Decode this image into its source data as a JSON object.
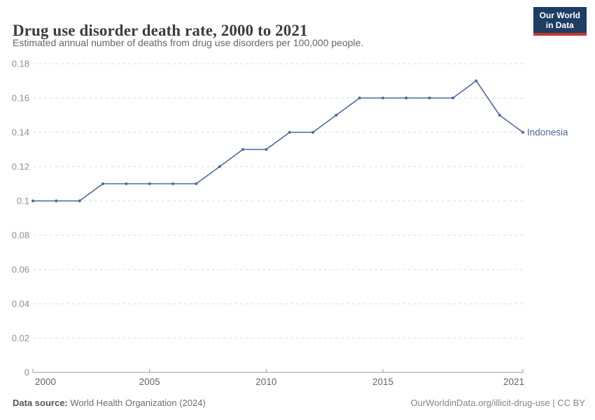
{
  "header": {
    "title": "Drug use disorder death rate, 2000 to 2021",
    "subtitle": "Estimated annual number of deaths from drug use disorders per 100,000 people.",
    "logo_line1": "Our World",
    "logo_line2": "in Data"
  },
  "chart_data": {
    "type": "line",
    "title": "Drug use disorder death rate, 2000 to 2021",
    "xlabel": "",
    "ylabel": "",
    "x": [
      2000,
      2001,
      2002,
      2003,
      2004,
      2005,
      2006,
      2007,
      2008,
      2009,
      2010,
      2011,
      2012,
      2013,
      2014,
      2015,
      2016,
      2017,
      2018,
      2019,
      2020,
      2021
    ],
    "series": [
      {
        "name": "Indonesia",
        "color": "#4c6a9c",
        "values": [
          0.1,
          0.1,
          0.1,
          0.11,
          0.11,
          0.11,
          0.11,
          0.11,
          0.12,
          0.13,
          0.13,
          0.14,
          0.14,
          0.15,
          0.16,
          0.16,
          0.16,
          0.16,
          0.16,
          0.17,
          0.15,
          0.14
        ]
      }
    ],
    "xlim": [
      2000,
      2021
    ],
    "ylim": [
      0,
      0.18
    ],
    "x_ticks": [
      {
        "value": 2000,
        "label": "2000"
      },
      {
        "value": 2005,
        "label": "2005"
      },
      {
        "value": 2010,
        "label": "2010"
      },
      {
        "value": 2015,
        "label": "2015"
      },
      {
        "value": 2021,
        "label": "2021"
      }
    ],
    "y_ticks": [
      {
        "value": 0,
        "label": "0"
      },
      {
        "value": 0.02,
        "label": "0.02"
      },
      {
        "value": 0.04,
        "label": "0.04"
      },
      {
        "value": 0.06,
        "label": "0.06"
      },
      {
        "value": 0.08,
        "label": "0.08"
      },
      {
        "value": 0.1,
        "label": "0.1"
      },
      {
        "value": 0.12,
        "label": "0.12"
      },
      {
        "value": 0.14,
        "label": "0.14"
      },
      {
        "value": 0.16,
        "label": "0.16"
      },
      {
        "value": 0.18,
        "label": "0.18"
      }
    ],
    "grid": "horizontal-dashed",
    "legend_position": "line-end-label"
  },
  "footer": {
    "source_label": "Data source:",
    "source_value": " World Health Organization (2024)",
    "attribution": "OurWorldinData.org/illicit-drug-use | CC BY"
  },
  "colors": {
    "line": "#4c6a9c",
    "gridline": "#dcdcdc",
    "axis": "#999999",
    "y_tick_text": "#8f8f8f",
    "x_tick_text": "#666666",
    "logo_bg": "#1d3d63",
    "logo_red": "#c5392f"
  }
}
